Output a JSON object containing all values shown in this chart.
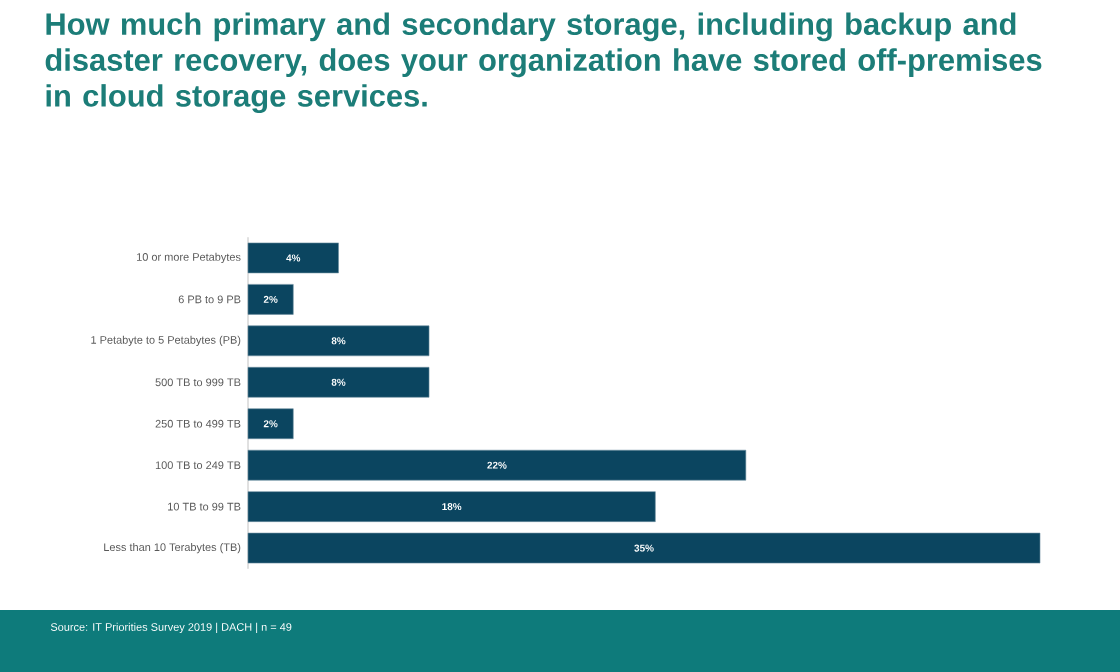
{
  "chart_data": {
    "type": "bar",
    "orientation": "horizontal",
    "title": "How much primary and secondary storage, including backup and disaster recovery, does your organization have stored off-premises in cloud storage services.",
    "categories": [
      "10 or more Petabytes",
      "6 PB to 9 PB",
      "1 Petabyte to 5 Petabytes (PB)",
      "500 TB to 999 TB",
      "250 TB to 499 TB",
      "100 TB to 249 TB",
      "10 TB to 99 TB",
      "Less than 10 Terabytes (TB)"
    ],
    "values": [
      4,
      2,
      8,
      8,
      2,
      22,
      18,
      35
    ],
    "value_labels": [
      "4%",
      "2%",
      "8%",
      "8%",
      "2%",
      "22%",
      "18%",
      "35%"
    ],
    "color": "#0b4560",
    "tick_labels": "y",
    "annotations": [
      "Source: IT Priorities Survey 2019 | DACH | n = 49"
    ]
  }
}
